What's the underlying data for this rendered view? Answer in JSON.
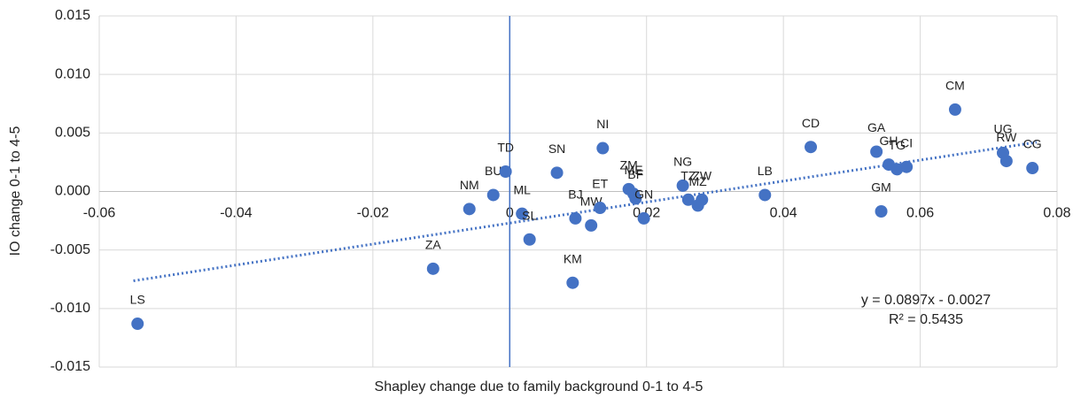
{
  "chart_data": {
    "type": "scatter",
    "x_label": "Shapley change due to family background 0-1 to 4-5",
    "y_label": "IO change 0-1 to 4-5",
    "color": "#4472c4",
    "xlim": [
      -0.06,
      0.08
    ],
    "xticks": [
      -0.06,
      -0.04,
      -0.02,
      0,
      0.02,
      0.04,
      0.06,
      0.08
    ],
    "ylim": [
      -0.015,
      0.015
    ],
    "yticks": [
      {
        "value": -0.015,
        "label": "-0.015"
      },
      {
        "value": -0.01,
        "label": "-0.010"
      },
      {
        "value": -0.005,
        "label": "-0.005"
      },
      {
        "value": 0,
        "label": "0.000"
      },
      0.005,
      {
        "value": 0.01,
        "label": "0.010"
      },
      0.015
    ],
    "grid": true,
    "series": [
      {
        "name": "IO change",
        "labels": [
          "LS",
          "ZA",
          "NM",
          "BU",
          "TD",
          "ML",
          "SL",
          "SN",
          "BJ",
          "KM",
          "MW",
          "ET",
          "NI",
          "ZM",
          "ME",
          "BF",
          "GN",
          "NG",
          "TZ",
          "MZ",
          "ZW",
          "LB",
          "CD",
          "GA",
          "GM",
          "GH",
          "TG",
          "CI",
          "CM",
          "UG",
          "RW",
          "CG"
        ],
        "x": [
          -0.0544,
          -0.0112,
          -0.0059,
          -0.0024,
          -0.0006,
          0.0018,
          0.0029,
          0.0069,
          0.0096,
          0.0092,
          0.0119,
          0.0132,
          0.0136,
          0.0174,
          0.0181,
          0.0184,
          0.0196,
          0.0253,
          0.0261,
          0.0275,
          0.0281,
          0.0373,
          0.044,
          0.0536,
          0.0543,
          0.0554,
          0.0566,
          0.058,
          0.0651,
          0.0721,
          0.0726,
          0.0764
        ],
        "values": [
          -0.0113,
          -0.0066,
          -0.0015,
          -0.0003,
          0.0017,
          -0.0019,
          -0.0041,
          0.0016,
          -0.0023,
          -0.0078,
          -0.0029,
          -0.0014,
          0.0037,
          0.0002,
          -0.0002,
          -0.0006,
          -0.0023,
          0.0005,
          -0.0007,
          -0.0012,
          -0.0007,
          -0.0003,
          0.0038,
          0.0034,
          -0.0017,
          0.0023,
          0.0019,
          0.0021,
          0.007,
          0.0033,
          0.0026,
          0.002
        ]
      }
    ],
    "trendline": {
      "slope": 0.0897,
      "intercept": -0.0027,
      "x": [
        -0.055,
        0.077
      ],
      "equation": "y = 0.0897x - 0.0027",
      "r2": "R² = 0.5435"
    }
  }
}
